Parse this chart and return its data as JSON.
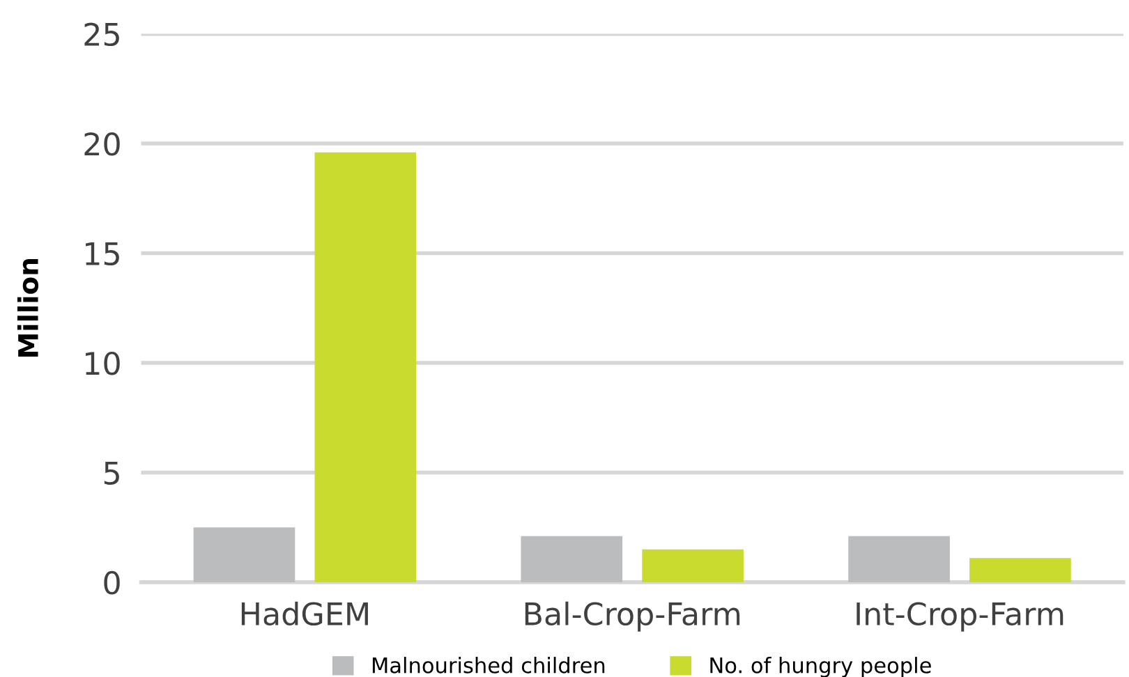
{
  "chart_data": {
    "type": "bar",
    "ylabel": "Million",
    "categories": [
      "HadGEM",
      "Bal-Crop-Farm",
      "Int-Crop-Farm"
    ],
    "series": [
      {
        "name": "Malnourished children",
        "color": "#bbbcbe",
        "values": [
          2.5,
          2.1,
          2.1
        ]
      },
      {
        "name": "No. of hungry people",
        "color": "#c9db2e",
        "values": [
          19.6,
          1.5,
          1.1
        ]
      }
    ],
    "ylim": [
      0,
      25
    ],
    "yticks": [
      0,
      5,
      10,
      15,
      20,
      25
    ],
    "grid": "y",
    "legend": "bottom"
  }
}
